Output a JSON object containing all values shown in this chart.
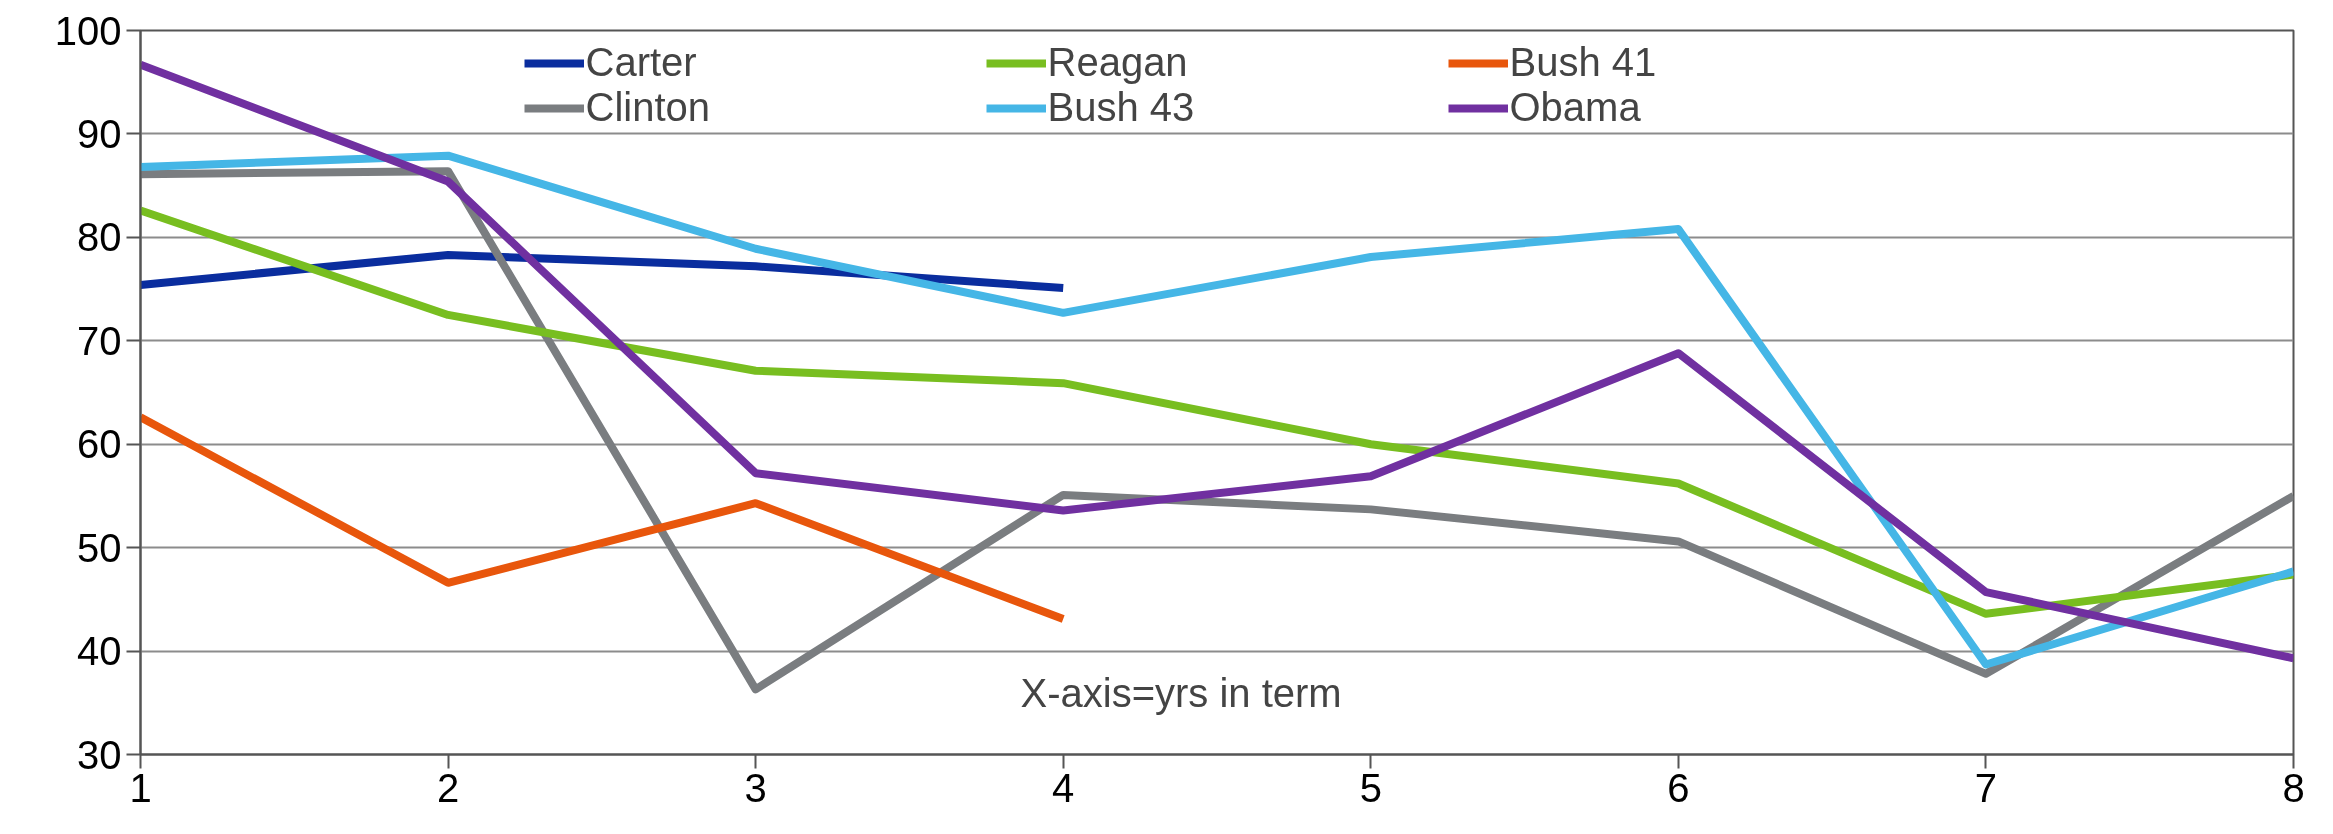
{
  "chart_data": {
    "type": "line",
    "x": [
      1,
      2,
      3,
      4,
      5,
      6,
      7,
      8
    ],
    "xlim": [
      1,
      8
    ],
    "xticks": [
      1,
      2,
      3,
      4,
      5,
      6,
      7,
      8
    ],
    "ylim": [
      30,
      100
    ],
    "yticks": [
      30,
      40,
      50,
      60,
      70,
      80,
      90,
      100
    ],
    "grid": "y",
    "legend": "top",
    "line_style": "solid",
    "annotations": [
      "X-axis=yrs in term"
    ],
    "series": [
      {
        "name": "Carter",
        "color": "#0a2d9e",
        "values": [
          75.4,
          78.3,
          77.2,
          75.1,
          null,
          null,
          null,
          null
        ]
      },
      {
        "name": "Clinton",
        "color": "#7a7d80",
        "values": [
          86.1,
          86.4,
          36.3,
          55.1,
          53.7,
          50.6,
          37.8,
          55.0
        ]
      },
      {
        "name": "Reagan",
        "color": "#78be20",
        "values": [
          82.6,
          72.5,
          67.1,
          65.9,
          60.0,
          56.2,
          43.6,
          47.4
        ]
      },
      {
        "name": "Bush 43",
        "color": "#45b6e6",
        "values": [
          86.8,
          87.9,
          78.9,
          72.7,
          78.1,
          80.8,
          38.7,
          47.7
        ]
      },
      {
        "name": "Bush 41",
        "color": "#e8560c",
        "values": [
          62.6,
          46.6,
          54.3,
          43.1,
          null,
          null,
          null,
          null
        ]
      },
      {
        "name": "Obama",
        "color": "#7030a0",
        "values": [
          96.7,
          85.4,
          57.2,
          53.6,
          56.9,
          68.8,
          45.7,
          39.3
        ]
      }
    ]
  }
}
